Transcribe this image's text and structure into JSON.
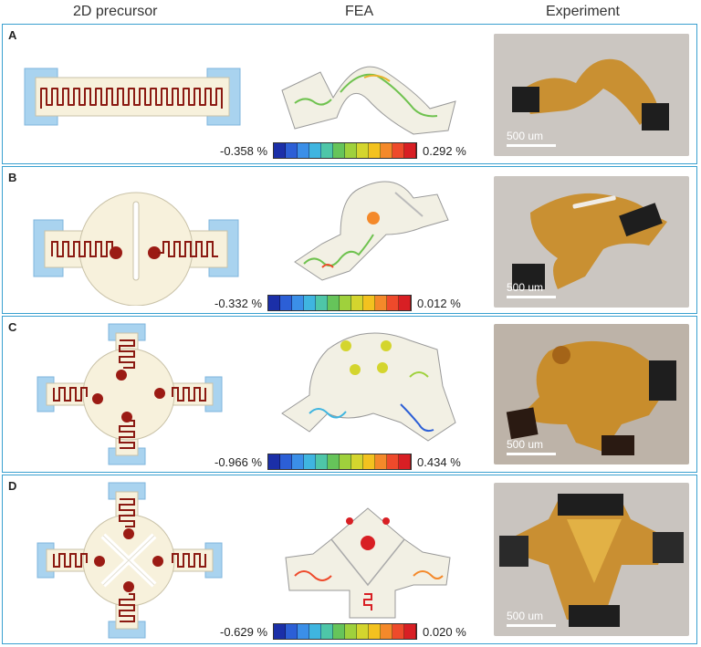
{
  "headers": {
    "col1": "2D precursor",
    "col2": "FEA",
    "col3": "Experiment"
  },
  "panels": [
    {
      "label": "A",
      "min": "-0.358 %",
      "max": "0.292 %",
      "scale": "500 um"
    },
    {
      "label": "B",
      "min": "-0.332 %",
      "max": "0.012 %",
      "scale": "500 um"
    },
    {
      "label": "C",
      "min": "-0.966 %",
      "max": "0.434 %",
      "scale": "500 um"
    },
    {
      "label": "D",
      "min": "-0.629 %",
      "max": "0.020 %",
      "scale": "500 um"
    }
  ],
  "colormap": [
    "#1b2fa8",
    "#2c5fd6",
    "#3b8fe8",
    "#3fb5e0",
    "#4ec6a8",
    "#66c45a",
    "#9fd13c",
    "#d4d52e",
    "#f3c21f",
    "#f4892a",
    "#ee4a2b",
    "#d81f24"
  ],
  "colors": {
    "border": "#3aa0d0",
    "pad": "#a9d3ef",
    "substrate": "#f7f1dc",
    "trace": "#8b1a12",
    "photo_bg": "#c9c4bf",
    "film": "#c98a22"
  }
}
